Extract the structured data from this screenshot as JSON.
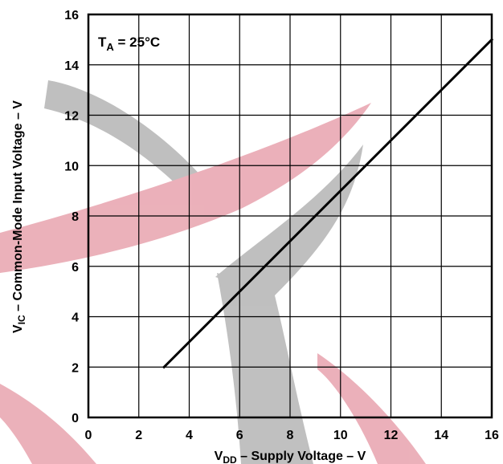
{
  "chart_data": {
    "type": "line",
    "annotation": {
      "main": "T",
      "sub": "A",
      "rest": " = 25°C"
    },
    "xlabel": {
      "main": "V",
      "sub": "DD",
      "rest": " – Supply Voltage – V"
    },
    "ylabel": {
      "main": "V",
      "sub": "IC",
      "rest": " – Common-Mode Input Voltage – V"
    },
    "xlim": [
      0,
      16
    ],
    "ylim": [
      0,
      16
    ],
    "xticks": [
      "0",
      "2",
      "4",
      "6",
      "8",
      "10",
      "12",
      "14",
      "16"
    ],
    "yticks": [
      "0",
      "2",
      "4",
      "6",
      "8",
      "10",
      "12",
      "14",
      "16"
    ],
    "grid": true,
    "series": [
      {
        "x": [
          3,
          16
        ],
        "y": [
          2,
          15
        ]
      }
    ],
    "colors": {
      "line": "#000000",
      "grid": "#000000",
      "watermark_red": "#e8a3ae",
      "watermark_gray": "#b5b5b5"
    }
  }
}
